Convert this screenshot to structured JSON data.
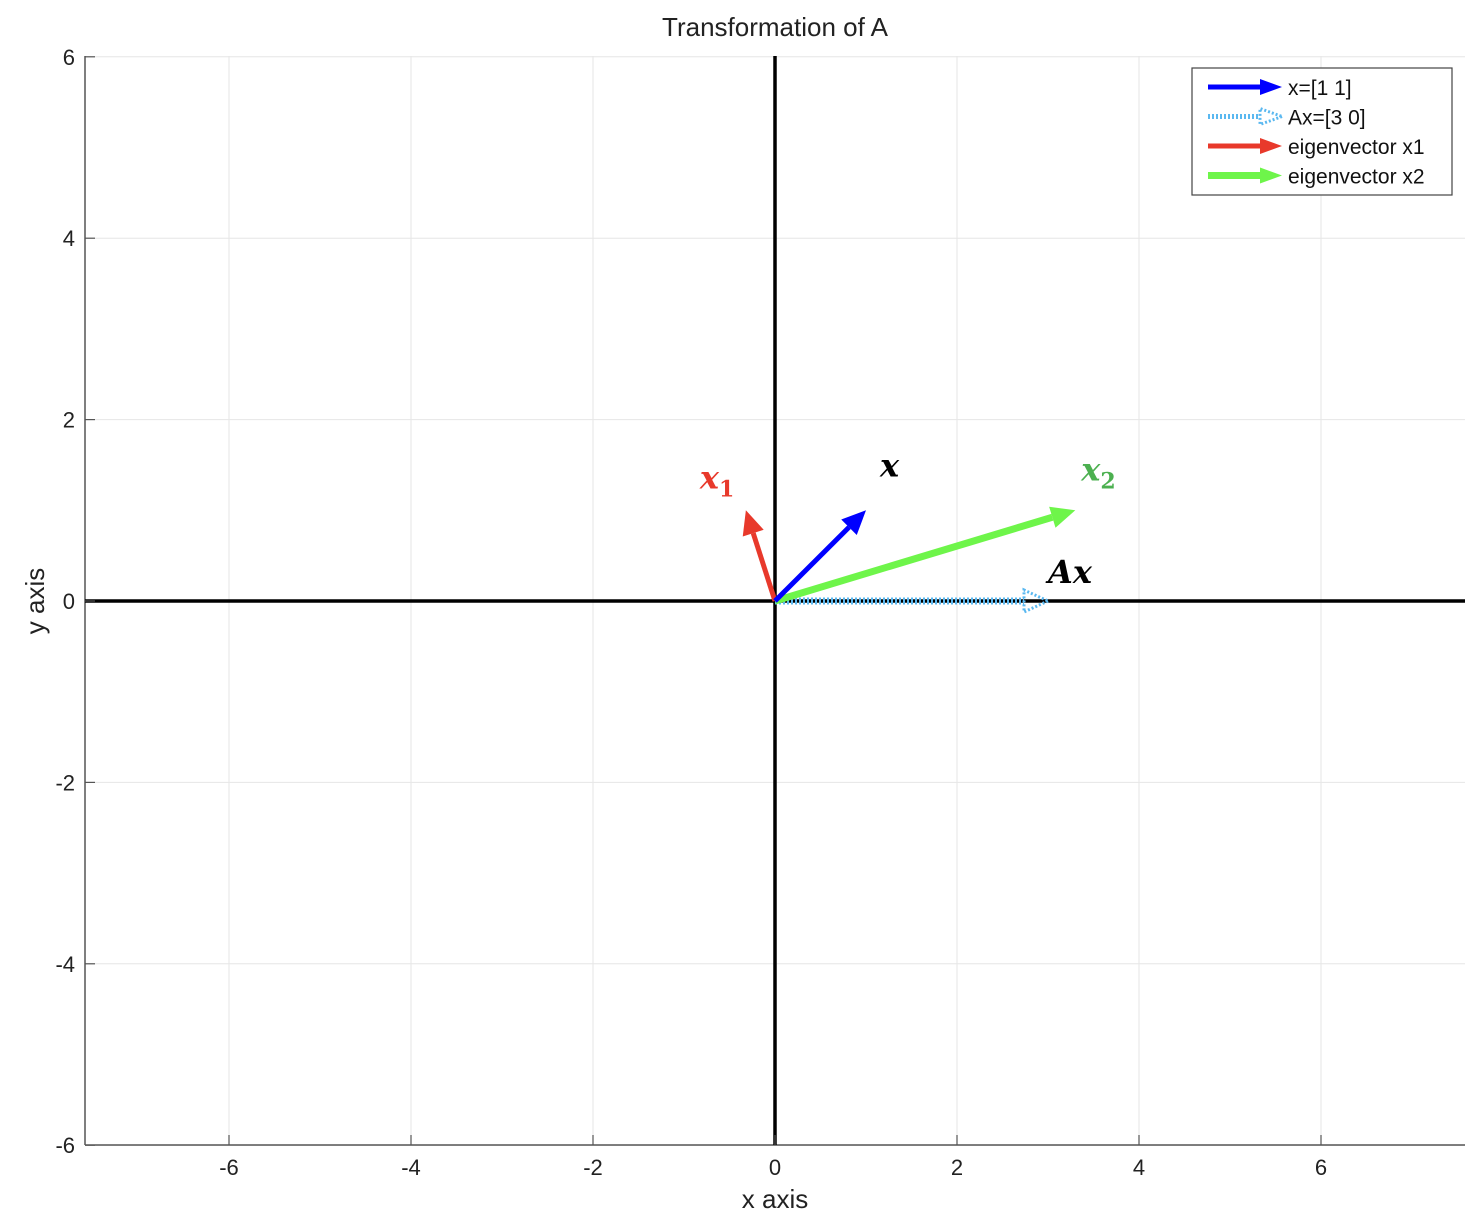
{
  "chart_data": {
    "type": "line",
    "title": "Transformation of A",
    "xlabel": "x axis",
    "ylabel": "y axis",
    "xlim": [
      -7.5,
      7.5
    ],
    "ylim": [
      -6,
      6
    ],
    "xticks": [
      -6,
      -4,
      -2,
      0,
      2,
      4,
      6
    ],
    "yticks": [
      -6,
      -4,
      -2,
      0,
      2,
      4,
      6
    ],
    "xtick_labels": [
      "-6",
      "-4",
      "-2",
      "0",
      "2",
      "4",
      "6"
    ],
    "ytick_labels": [
      "-6",
      "-4",
      "-2",
      "0",
      "2",
      "4",
      "6"
    ],
    "grid": true,
    "legend_position": "top-right",
    "series": [
      {
        "name": "x=[1 1]",
        "from": [
          0,
          0
        ],
        "to": [
          1,
          1
        ],
        "color": "#0000ff",
        "style": "solid",
        "annotation": "x",
        "annotation_color": "#000000"
      },
      {
        "name": "Ax=[3 0]",
        "from": [
          0,
          0
        ],
        "to": [
          3,
          0
        ],
        "color": "#5ab8f0",
        "style": "dotted",
        "annotation": "Ax",
        "annotation_color": "#000000"
      },
      {
        "name": "eigenvector x1",
        "from": [
          0,
          0
        ],
        "to": [
          -0.32,
          1
        ],
        "color": "#e8392b",
        "style": "solid",
        "annotation": "x",
        "annotation_sub": "1",
        "annotation_color": "#e8392b"
      },
      {
        "name": "eigenvector x2",
        "from": [
          0,
          0
        ],
        "to": [
          3.3,
          1
        ],
        "color": "#6ef54a",
        "style": "solid",
        "annotation": "x",
        "annotation_sub": "2",
        "annotation_color": "#4cb050"
      }
    ]
  }
}
